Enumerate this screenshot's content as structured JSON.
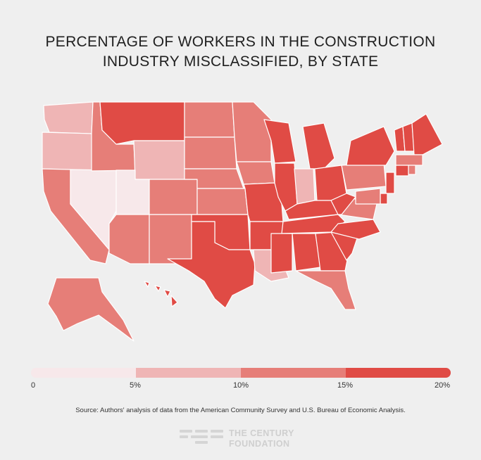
{
  "title": {
    "line1": "PERCENTAGE OF WORKERS IN THE CONSTRUCTION",
    "line2": "INDUSTRY MISCLASSIFIED, BY STATE"
  },
  "colors": {
    "background": "#efefef",
    "bins": [
      "#f7e8ea",
      "#efb5b5",
      "#e67e78",
      "#e04b45"
    ],
    "border": "#ffffff"
  },
  "legend": {
    "ticks": [
      "0",
      "5%",
      "10%",
      "15%",
      "20%"
    ]
  },
  "states": [
    {
      "abbr": "WA",
      "bin": 1
    },
    {
      "abbr": "OR",
      "bin": 1
    },
    {
      "abbr": "CA",
      "bin": 2
    },
    {
      "abbr": "NV",
      "bin": 0
    },
    {
      "abbr": "ID",
      "bin": 2
    },
    {
      "abbr": "MT",
      "bin": 3
    },
    {
      "abbr": "WY",
      "bin": 1
    },
    {
      "abbr": "UT",
      "bin": 0
    },
    {
      "abbr": "AZ",
      "bin": 2
    },
    {
      "abbr": "CO",
      "bin": 2
    },
    {
      "abbr": "NM",
      "bin": 2
    },
    {
      "abbr": "ND",
      "bin": 2
    },
    {
      "abbr": "SD",
      "bin": 2
    },
    {
      "abbr": "NE",
      "bin": 2
    },
    {
      "abbr": "KS",
      "bin": 2
    },
    {
      "abbr": "OK",
      "bin": 3
    },
    {
      "abbr": "TX",
      "bin": 3
    },
    {
      "abbr": "MN",
      "bin": 2
    },
    {
      "abbr": "IA",
      "bin": 2
    },
    {
      "abbr": "MO",
      "bin": 3
    },
    {
      "abbr": "AR",
      "bin": 3
    },
    {
      "abbr": "LA",
      "bin": 1
    },
    {
      "abbr": "WI",
      "bin": 3
    },
    {
      "abbr": "IL",
      "bin": 3
    },
    {
      "abbr": "MI",
      "bin": 3
    },
    {
      "abbr": "IN",
      "bin": 1
    },
    {
      "abbr": "OH",
      "bin": 3
    },
    {
      "abbr": "KY",
      "bin": 3
    },
    {
      "abbr": "TN",
      "bin": 3
    },
    {
      "abbr": "MS",
      "bin": 3
    },
    {
      "abbr": "AL",
      "bin": 3
    },
    {
      "abbr": "GA",
      "bin": 3
    },
    {
      "abbr": "FL",
      "bin": 2
    },
    {
      "abbr": "SC",
      "bin": 3
    },
    {
      "abbr": "NC",
      "bin": 3
    },
    {
      "abbr": "VA",
      "bin": 2
    },
    {
      "abbr": "WV",
      "bin": 3
    },
    {
      "abbr": "PA",
      "bin": 2
    },
    {
      "abbr": "NY",
      "bin": 3
    },
    {
      "abbr": "VT",
      "bin": 3
    },
    {
      "abbr": "NH",
      "bin": 3
    },
    {
      "abbr": "ME",
      "bin": 3
    },
    {
      "abbr": "MA",
      "bin": 2
    },
    {
      "abbr": "CT",
      "bin": 3
    },
    {
      "abbr": "RI",
      "bin": 2
    },
    {
      "abbr": "NJ",
      "bin": 3
    },
    {
      "abbr": "DE",
      "bin": 3
    },
    {
      "abbr": "MD",
      "bin": 2
    },
    {
      "abbr": "AK",
      "bin": 2
    },
    {
      "abbr": "HI",
      "bin": 3
    }
  ],
  "source": "Source: Authors' analysis of data from the American Community Survey and U.S. Bureau of Economic Analysis.",
  "logo": {
    "line1": "THE CENTURY",
    "line2": "FOUNDATION"
  }
}
